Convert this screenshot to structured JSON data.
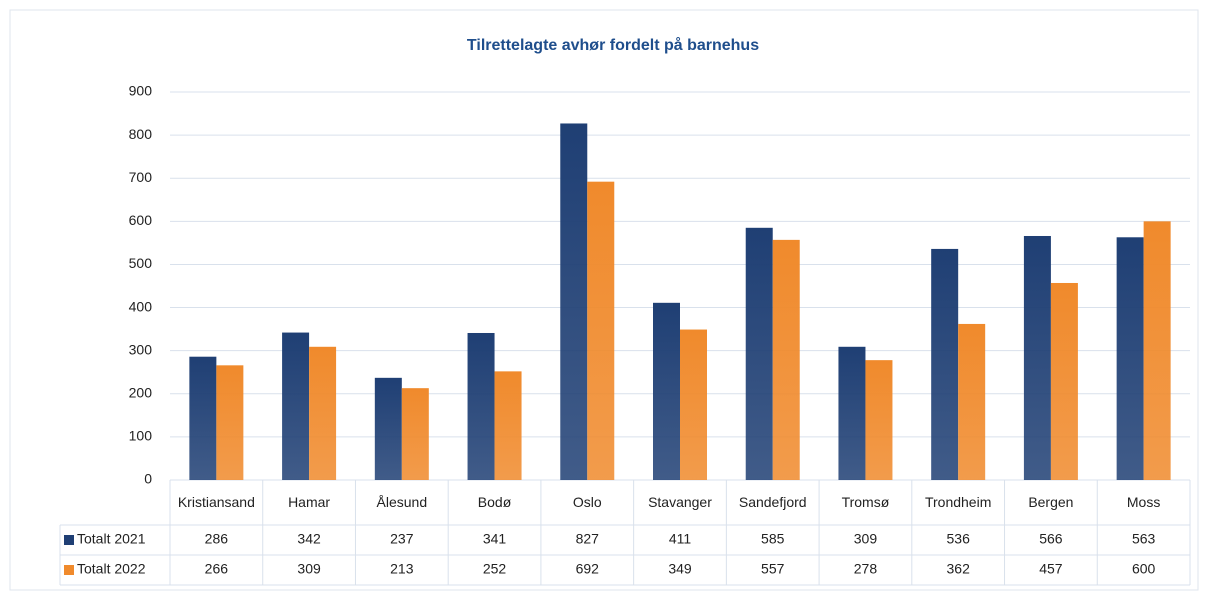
{
  "chart_data": {
    "type": "bar",
    "title": "Tilrettelagte avhør fordelt på barnehus",
    "categories": [
      "Kristiansand",
      "Hamar",
      "Ålesund",
      "Bodø",
      "Oslo",
      "Stavanger",
      "Sandefjord",
      "Tromsø",
      "Trondheim",
      "Bergen",
      "Moss"
    ],
    "series": [
      {
        "name": "Totalt 2021",
        "color": "#1f3f74",
        "values": [
          286,
          342,
          237,
          341,
          827,
          411,
          585,
          309,
          536,
          566,
          563
        ]
      },
      {
        "name": "Totalt 2022",
        "color": "#f08a2c",
        "values": [
          266,
          309,
          213,
          252,
          692,
          349,
          557,
          278,
          362,
          457,
          600
        ]
      }
    ],
    "ylim": [
      0,
      900
    ],
    "yticks": [
      0,
      100,
      200,
      300,
      400,
      500,
      600,
      700,
      800,
      900
    ],
    "grid": true
  }
}
